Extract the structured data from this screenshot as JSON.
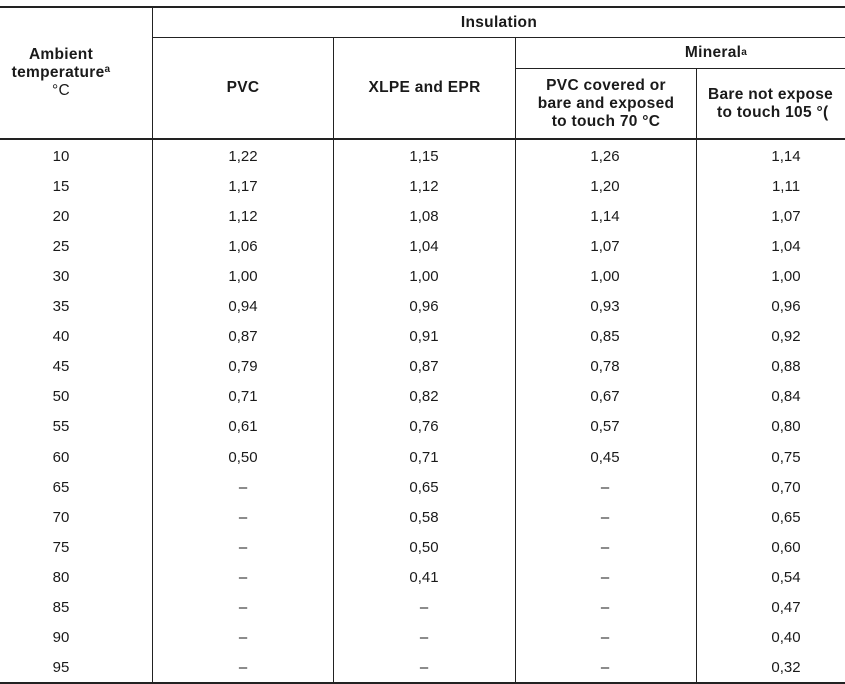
{
  "header": {
    "ambient_line1": "Ambient",
    "ambient_line2": "temperature",
    "ambient_sup": "a",
    "ambient_unit": "°C",
    "insulation": "Insulation",
    "mineral": "Mineral",
    "mineral_sup": "a",
    "col_pvc": "PVC",
    "col_xlpe": "XLPE and EPR",
    "col_pvc_covered_line1": "PVC covered or",
    "col_pvc_covered_line2": "bare and exposed",
    "col_pvc_covered_line3": "to touch 70 °C",
    "col_bare_line1": "Bare not expose",
    "col_bare_line2": "to touch 105 °("
  },
  "rows": [
    [
      "10",
      "1,22",
      "1,15",
      "1,26",
      "1,14"
    ],
    [
      "15",
      "1,17",
      "1,12",
      "1,20",
      "1,11"
    ],
    [
      "20",
      "1,12",
      "1,08",
      "1,14",
      "1,07"
    ],
    [
      "25",
      "1,06",
      "1,04",
      "1,07",
      "1,04"
    ],
    [
      "30",
      "1,00",
      "1,00",
      "1,00",
      "1,00"
    ],
    [
      "35",
      "0,94",
      "0,96",
      "0,93",
      "0,96"
    ],
    [
      "40",
      "0,87",
      "0,91",
      "0,85",
      "0,92"
    ],
    [
      "45",
      "0,79",
      "0,87",
      "0,78",
      "0,88"
    ],
    [
      "50",
      "0,71",
      "0,82",
      "0,67",
      "0,84"
    ],
    [
      "55",
      "0,61",
      "0,76",
      "0,57",
      "0,80"
    ],
    [
      "60",
      "0,50",
      "0,71",
      "0,45",
      "0,75"
    ],
    [
      "65",
      "–",
      "0,65",
      "–",
      "0,70"
    ],
    [
      "70",
      "–",
      "0,58",
      "–",
      "0,65"
    ],
    [
      "75",
      "–",
      "0,50",
      "–",
      "0,60"
    ],
    [
      "80",
      "–",
      "0,41",
      "–",
      "0,54"
    ],
    [
      "85",
      "–",
      "–",
      "–",
      "0,47"
    ],
    [
      "90",
      "–",
      "–",
      "–",
      "0,40"
    ],
    [
      "95",
      "–",
      "–",
      "–",
      "0,32"
    ]
  ]
}
